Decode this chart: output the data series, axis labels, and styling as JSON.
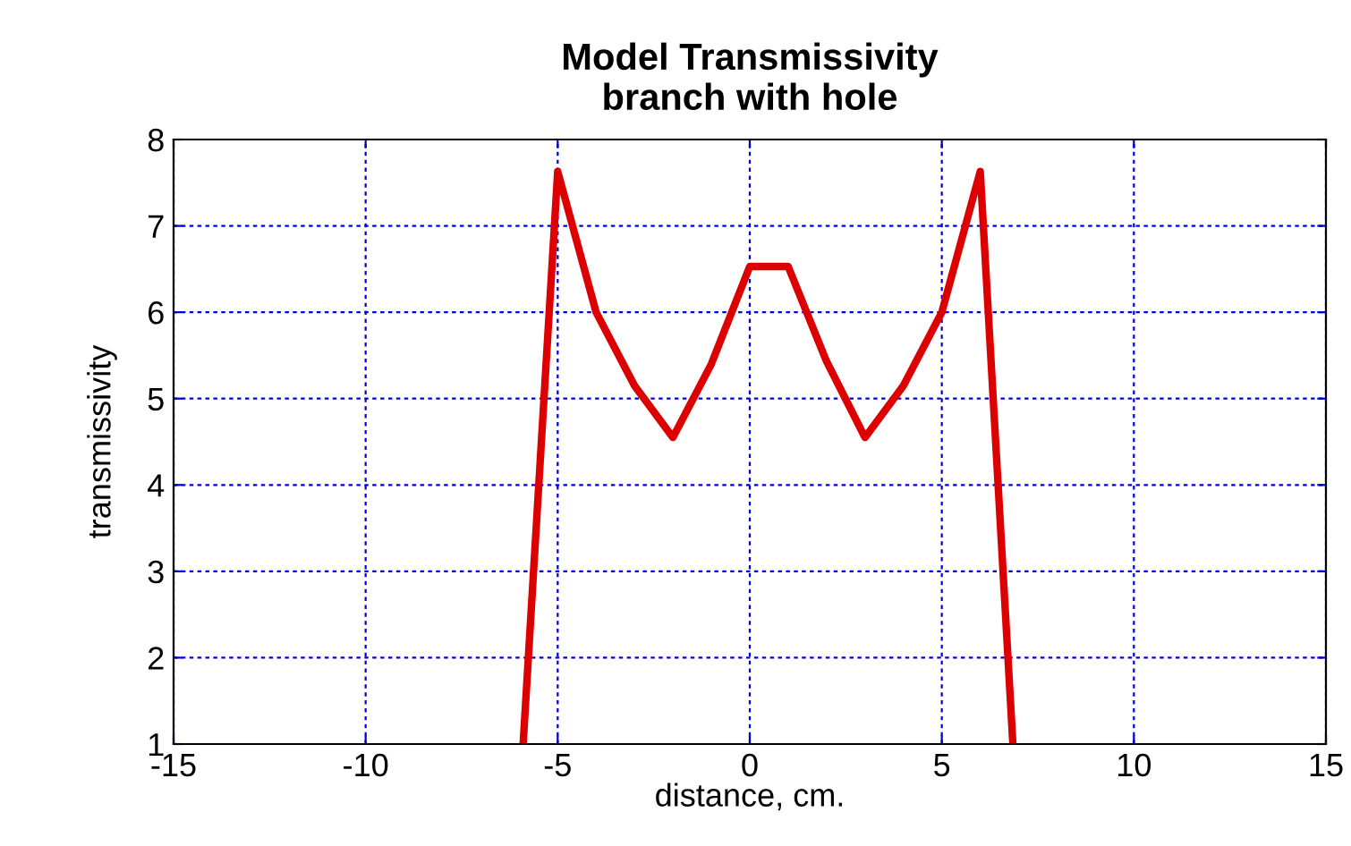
{
  "chart_data": {
    "type": "line",
    "title": "Model Transmissivity\nbranch with hole",
    "xlabel": "distance, cm.",
    "ylabel": "transmissivity",
    "series": [
      {
        "color": "#dd0000",
        "x": [
          -5.9,
          -5,
          -4,
          -3,
          -2,
          -1,
          0,
          1,
          2,
          3,
          4,
          5,
          6,
          6.85
        ],
        "values": [
          1,
          7.63,
          6.0,
          5.15,
          4.55,
          5.4,
          6.53,
          6.53,
          5.43,
          4.55,
          5.15,
          6.0,
          7.63,
          1
        ]
      }
    ],
    "xlim": [
      -15,
      15
    ],
    "xticks": [
      -15,
      -10,
      -5,
      0,
      5,
      10,
      15
    ],
    "ylim": [
      1,
      8
    ],
    "yticks": [
      1,
      2,
      3,
      4,
      5,
      6,
      7,
      8
    ],
    "grid": true,
    "line_style": "solid",
    "marker": "none",
    "legend": false
  }
}
